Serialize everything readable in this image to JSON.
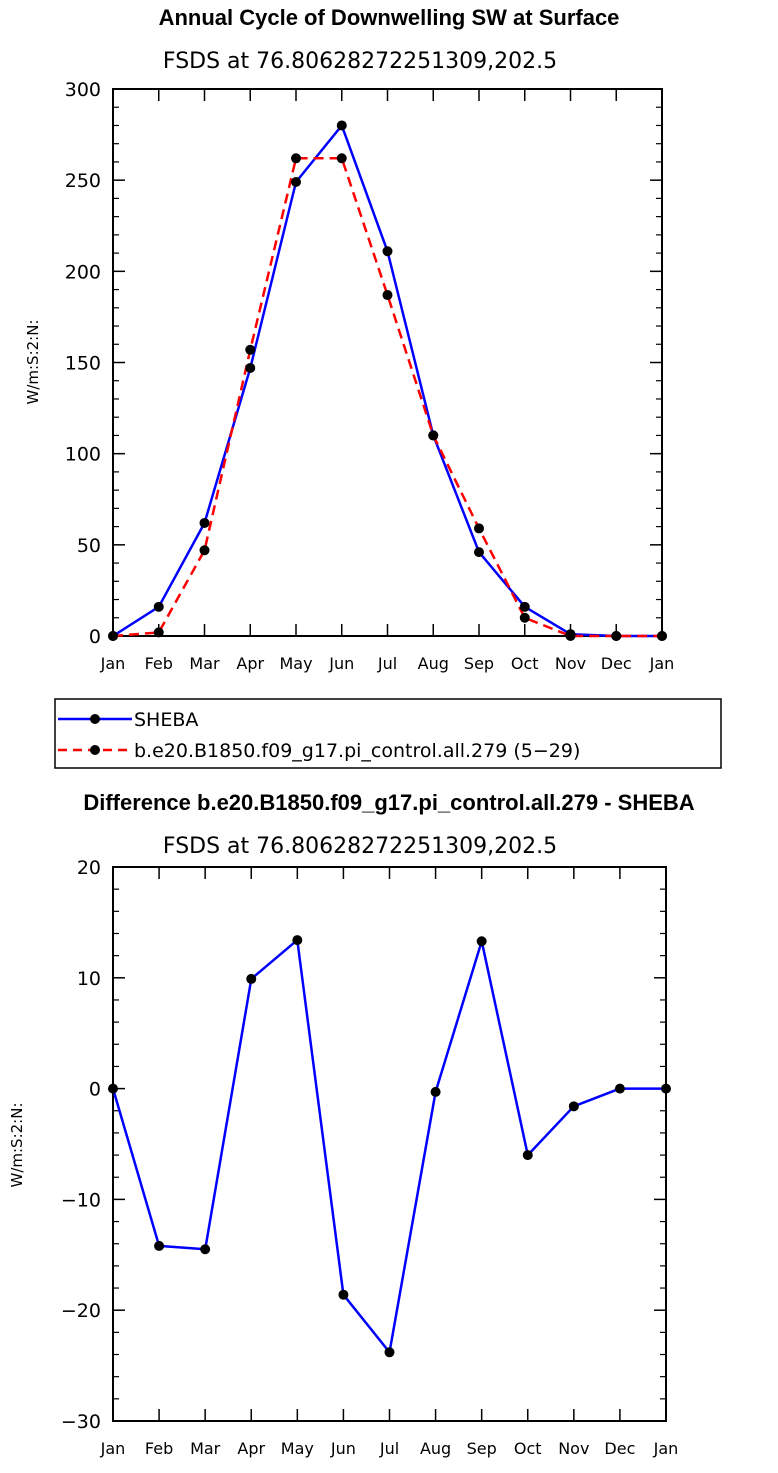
{
  "months": [
    "Jan",
    "Feb",
    "Mar",
    "Apr",
    "May",
    "Jun",
    "Jul",
    "Aug",
    "Sep",
    "Oct",
    "Nov",
    "Dec",
    "Jan"
  ],
  "colors": {
    "sheba": "#0000ff",
    "model": "#ff0000",
    "diff": "#0000ff",
    "marker": "#000000"
  },
  "chart_data": [
    {
      "type": "line",
      "title": "Annual Cycle of Downwelling SW at Surface",
      "subtitle": "FSDS at 76.80628272251309,202.5",
      "ylabel": "W/m:S:2:N:",
      "ylim": [
        0,
        300
      ],
      "yticks": [
        0,
        50,
        100,
        150,
        200,
        250,
        300
      ],
      "x": [
        "Jan",
        "Feb",
        "Mar",
        "Apr",
        "May",
        "Jun",
        "Jul",
        "Aug",
        "Sep",
        "Oct",
        "Nov",
        "Dec",
        "Jan"
      ],
      "series": [
        {
          "name": "SHEBA",
          "style": "solid",
          "values": [
            0,
            16,
            62,
            147,
            249,
            280,
            211,
            110,
            46,
            16,
            1,
            0,
            0
          ]
        },
        {
          "name": "b.e20.B1850.f09_g17.pi_control.all.279 (5−29)",
          "style": "dashed",
          "values": [
            0,
            2,
            47,
            157,
            262,
            262,
            187,
            110,
            59,
            10,
            0,
            0,
            0
          ]
        }
      ],
      "legend": "below"
    },
    {
      "type": "line",
      "title": "Difference b.e20.B1850.f09_g17.pi_control.all.279 - SHEBA",
      "subtitle": "FSDS at 76.80628272251309,202.5",
      "ylabel": "W/m:S:2:N:",
      "ylim": [
        -30,
        20
      ],
      "yticks": [
        -30,
        -20,
        -10,
        0,
        10,
        20
      ],
      "x": [
        "Jan",
        "Feb",
        "Mar",
        "Apr",
        "May",
        "Jun",
        "Jul",
        "Aug",
        "Sep",
        "Oct",
        "Nov",
        "Dec",
        "Jan"
      ],
      "series": [
        {
          "style": "solid",
          "values": [
            0,
            -14.2,
            -14.5,
            9.9,
            13.4,
            -18.6,
            -23.8,
            -0.3,
            13.3,
            -6.0,
            -1.6,
            0,
            0
          ]
        }
      ]
    }
  ]
}
